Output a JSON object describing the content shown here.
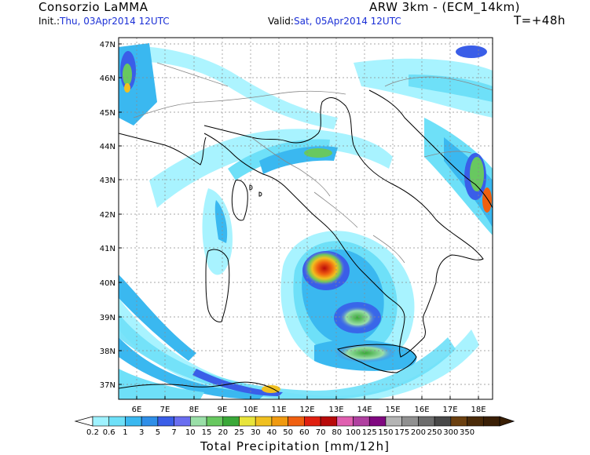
{
  "header": {
    "org": "Consorzio LaMMA",
    "model": "ARW 3km - (ECM_14km)",
    "init_label": "Init.:",
    "init_value": "Thu, 03Apr2014 12UTC",
    "valid_label": "Valid:",
    "valid_value": "Sat, 05Apr2014 12UTC",
    "lead": "T=+48h"
  },
  "map": {
    "lat_labels": [
      "47N",
      "46N",
      "45N",
      "44N",
      "43N",
      "42N",
      "41N",
      "40N",
      "39N",
      "38N",
      "37N"
    ],
    "lon_labels": [
      "6E",
      "7E",
      "8E",
      "9E",
      "10E",
      "11E",
      "12E",
      "13E",
      "14E",
      "15E",
      "16E",
      "17E",
      "18E"
    ],
    "grid": true
  },
  "colorbar": {
    "title": "Total Precipitation [mm/12h]",
    "labels": [
      "0.2",
      "0.6",
      "1",
      "3",
      "5",
      "7",
      "10",
      "15",
      "20",
      "25",
      "30",
      "40",
      "50",
      "60",
      "70",
      "80",
      "100",
      "125",
      "150",
      "175",
      "200",
      "250",
      "300",
      "350"
    ],
    "colors": [
      "#9ff2ff",
      "#6ee0f8",
      "#3ab8f0",
      "#2f8fe8",
      "#3a5ee8",
      "#6a6ef0",
      "#9adfa8",
      "#68c860",
      "#3aa838",
      "#e8e43a",
      "#f0c020",
      "#f09a10",
      "#f06010",
      "#e02010",
      "#b80a0a",
      "#e060b0",
      "#b040a0",
      "#800880",
      "#b4b4b4",
      "#909090",
      "#6c6c6c",
      "#484848",
      "#6b4010",
      "#4a2a08",
      "#3a1f05"
    ]
  }
}
